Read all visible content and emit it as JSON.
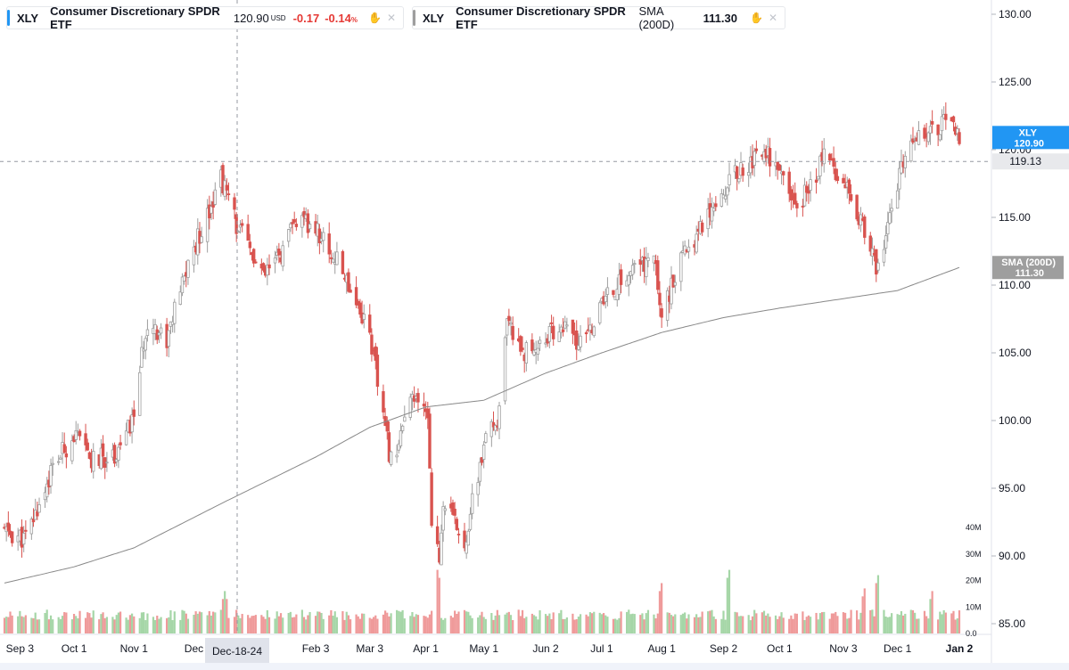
{
  "legend_main": {
    "symbol": "XLY",
    "name": "Consumer Discretionary SPDR ETF",
    "price": "120.90",
    "currency": "USD",
    "change": "-0.17",
    "change_pct": "-0.14",
    "pct_sign": "%"
  },
  "legend_sma": {
    "symbol": "XLY",
    "name": "Consumer Discretionary SPDR ETF",
    "study": "SMA (200D)",
    "value": "111.30"
  },
  "colors": {
    "up": "#9e9e9e",
    "down": "#d9534f",
    "vol_up": "#a5d6a7",
    "vol_down": "#ef9a9a",
    "accent": "#2196f3",
    "sma": "#888888"
  },
  "icons": [
    "hand-icon",
    "close-icon"
  ],
  "crosshair_label": "Dec-18-24",
  "crosshair_price": "119.13",
  "chart_data": {
    "type": "candlestick",
    "y_axis": {
      "ticks": [
        "130.00",
        "125.00",
        "120.00",
        "115.00",
        "110.00",
        "105.00",
        "100.00",
        "95.00",
        "90.00",
        "85.00"
      ],
      "range": [
        85,
        131
      ]
    },
    "volume_axis": {
      "ticks": [
        "40M",
        "30M",
        "20M",
        "10M",
        "0.0"
      ],
      "range": [
        0,
        42
      ]
    },
    "x_axis": {
      "ticks": [
        "Sep 3",
        "Oct 1",
        "Nov 1",
        "Dec",
        "Feb 3",
        "Mar 3",
        "Apr 1",
        "May 1",
        "Jun 2",
        "Jul 1",
        "Aug 1",
        "Sep 2",
        "Oct 1",
        "Nov 3",
        "Dec 1",
        "Jan 2"
      ]
    },
    "price_label": {
      "symbol": "XLY",
      "value": "120.90"
    },
    "sma_label": {
      "name": "SMA (200D)",
      "value": "111.30"
    },
    "price_series": [
      {
        "d": "2024-08-26",
        "v": 91.8
      },
      {
        "d": "2024-09-06",
        "v": 91.2
      },
      {
        "d": "2024-09-20",
        "v": 96.5
      },
      {
        "d": "2024-10-01",
        "v": 99.0
      },
      {
        "d": "2024-10-10",
        "v": 97.0
      },
      {
        "d": "2024-10-22",
        "v": 97.5
      },
      {
        "d": "2024-10-31",
        "v": 99.8
      },
      {
        "d": "2024-11-08",
        "v": 107.5
      },
      {
        "d": "2024-11-18",
        "v": 106.0
      },
      {
        "d": "2024-11-29",
        "v": 111.5
      },
      {
        "d": "2024-12-12",
        "v": 116.5
      },
      {
        "d": "2024-12-16",
        "v": 118.0
      },
      {
        "d": "2024-12-24",
        "v": 114.5
      },
      {
        "d": "2025-01-07",
        "v": 110.5
      },
      {
        "d": "2025-01-17",
        "v": 112.5
      },
      {
        "d": "2025-01-24",
        "v": 114.8
      },
      {
        "d": "2025-02-04",
        "v": 114.0
      },
      {
        "d": "2025-02-19",
        "v": 110.5
      },
      {
        "d": "2025-03-03",
        "v": 106.5
      },
      {
        "d": "2025-03-10",
        "v": 100.0
      },
      {
        "d": "2025-03-14",
        "v": 97.0
      },
      {
        "d": "2025-03-25",
        "v": 101.5
      },
      {
        "d": "2025-04-02",
        "v": 100.5
      },
      {
        "d": "2025-04-04",
        "v": 93.0
      },
      {
        "d": "2025-04-08",
        "v": 89.5
      },
      {
        "d": "2025-04-10",
        "v": 94.0
      },
      {
        "d": "2025-04-21",
        "v": 91.0
      },
      {
        "d": "2025-05-01",
        "v": 98.0
      },
      {
        "d": "2025-05-09",
        "v": 100.5
      },
      {
        "d": "2025-05-13",
        "v": 107.0
      },
      {
        "d": "2025-05-23",
        "v": 105.0
      },
      {
        "d": "2025-06-10",
        "v": 107.0
      },
      {
        "d": "2025-06-20",
        "v": 105.5
      },
      {
        "d": "2025-07-03",
        "v": 109.0
      },
      {
        "d": "2025-07-16",
        "v": 111.0
      },
      {
        "d": "2025-07-28",
        "v": 112.0
      },
      {
        "d": "2025-08-01",
        "v": 108.0
      },
      {
        "d": "2025-08-12",
        "v": 112.0
      },
      {
        "d": "2025-08-27",
        "v": 116.0
      },
      {
        "d": "2025-09-10",
        "v": 118.5
      },
      {
        "d": "2025-09-24",
        "v": 120.0
      },
      {
        "d": "2025-10-10",
        "v": 115.5
      },
      {
        "d": "2025-10-24",
        "v": 119.5
      },
      {
        "d": "2025-11-06",
        "v": 117.5
      },
      {
        "d": "2025-11-20",
        "v": 111.0
      },
      {
        "d": "2025-12-02",
        "v": 118.0
      },
      {
        "d": "2025-12-12",
        "v": 121.5
      },
      {
        "d": "2025-12-26",
        "v": 122.0
      },
      {
        "d": "2026-01-02",
        "v": 120.9
      }
    ],
    "sma_series": [
      {
        "d": "2024-08-26",
        "v": 88.0
      },
      {
        "d": "2024-10-01",
        "v": 89.2
      },
      {
        "d": "2024-11-01",
        "v": 90.6
      },
      {
        "d": "2024-12-18",
        "v": 94.0
      },
      {
        "d": "2025-02-03",
        "v": 97.3
      },
      {
        "d": "2025-03-03",
        "v": 99.5
      },
      {
        "d": "2025-04-01",
        "v": 101.0
      },
      {
        "d": "2025-05-01",
        "v": 101.5
      },
      {
        "d": "2025-06-02",
        "v": 103.5
      },
      {
        "d": "2025-07-01",
        "v": 105.0
      },
      {
        "d": "2025-08-01",
        "v": 106.5
      },
      {
        "d": "2025-09-02",
        "v": 107.6
      },
      {
        "d": "2025-10-01",
        "v": 108.3
      },
      {
        "d": "2025-11-03",
        "v": 109.0
      },
      {
        "d": "2025-12-01",
        "v": 109.6
      },
      {
        "d": "2026-01-02",
        "v": 111.3
      }
    ],
    "volume_spikes": [
      {
        "d": "2024-12-18",
        "v": 16
      },
      {
        "d": "2025-04-07",
        "v": 24
      },
      {
        "d": "2025-08-01",
        "v": 19
      },
      {
        "d": "2025-09-05",
        "v": 24
      },
      {
        "d": "2025-11-14",
        "v": 17
      },
      {
        "d": "2025-11-21",
        "v": 22
      },
      {
        "d": "2025-12-19",
        "v": 16
      }
    ]
  }
}
